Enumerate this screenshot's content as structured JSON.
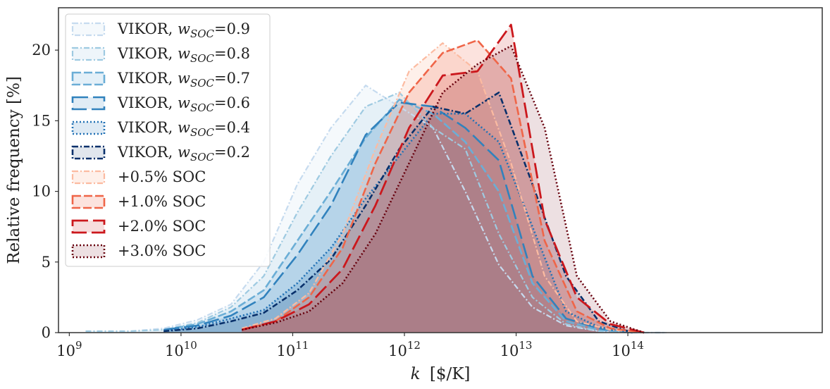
{
  "chart_data": {
    "type": "area",
    "xscale": "log",
    "xlabel_symbol": "k",
    "xlabel_unit": "[$/K]",
    "ylabel": "Relative frequency [%]",
    "xlim": [
      800000000,
      5500000000000000
    ],
    "ylim": [
      0,
      23
    ],
    "x_ticks": [
      {
        "base": "10",
        "exp": "9",
        "value": 1000000000
      },
      {
        "base": "10",
        "exp": "10",
        "value": 10000000000
      },
      {
        "base": "10",
        "exp": "11",
        "value": 100000000000
      },
      {
        "base": "10",
        "exp": "12",
        "value": 1000000000000
      },
      {
        "base": "10",
        "exp": "13",
        "value": 10000000000000
      },
      {
        "base": "10",
        "exp": "14",
        "value": 100000000000000
      }
    ],
    "y_ticks": [
      "0",
      "5",
      "10",
      "15",
      "20"
    ],
    "grid": false,
    "legend_position": "top-left",
    "series": [
      {
        "name": "VIKOR, w_SOC=0.9",
        "label_prefix": "VIKOR, ",
        "label_sym": "w",
        "label_sub": "SOC",
        "label_suffix": "=0.9",
        "color": "#c6dbef",
        "dash": "8 3 2 3",
        "width": 2.2,
        "fill_opacity": 0.18,
        "x": [
          1400000000.0,
          3500000000.0,
          7000000000.0,
          14000000000.0,
          28000000000.0,
          55000000000.0,
          110000000000.0,
          220000000000.0,
          450000000000.0,
          900000000000.0,
          1800000000000.0,
          3500000000000.0,
          7000000000000.0,
          14000000000000.0,
          28000000000000.0,
          55000000000000.0,
          110000000000000.0,
          220000000000000.0
        ],
        "values": [
          0.1,
          0.1,
          0.3,
          0.9,
          2.0,
          5.0,
          10.5,
          14.5,
          17.5,
          16.0,
          14.5,
          10.0,
          4.8,
          1.8,
          0.5,
          0.1,
          0.0,
          0.0
        ]
      },
      {
        "name": "VIKOR, w_SOC=0.8",
        "label_prefix": "VIKOR, ",
        "label_sym": "w",
        "label_sub": "SOC",
        "label_suffix": "=0.8",
        "color": "#9ecae1",
        "dash": "8 3 2 3",
        "width": 2.2,
        "fill_opacity": 0.18,
        "x": [
          1400000000.0,
          3500000000.0,
          7000000000.0,
          14000000000.0,
          28000000000.0,
          55000000000.0,
          110000000000.0,
          220000000000.0,
          450000000000.0,
          900000000000.0,
          1800000000000.0,
          3500000000000.0,
          7000000000000.0,
          14000000000000.0,
          28000000000000.0,
          55000000000000.0,
          110000000000000.0,
          220000000000000.0
        ],
        "values": [
          0.1,
          0.1,
          0.2,
          0.7,
          1.8,
          4.0,
          8.5,
          12.5,
          16.0,
          17.0,
          14.5,
          13.0,
          7.0,
          2.5,
          0.6,
          0.1,
          0.0,
          0.0
        ]
      },
      {
        "name": "VIKOR, w_SOC=0.7",
        "label_prefix": "VIKOR, ",
        "label_sym": "w",
        "label_sub": "SOC",
        "label_suffix": "=0.7",
        "color": "#6baed6",
        "dash": "12 4",
        "width": 2.6,
        "fill_opacity": 0.18,
        "x": [
          7000000000.0,
          14000000000.0,
          28000000000.0,
          55000000000.0,
          110000000000.0,
          220000000000.0,
          450000000000.0,
          900000000000.0,
          1800000000000.0,
          3500000000000.0,
          7000000000000.0,
          14000000000000.0,
          28000000000000.0,
          55000000000000.0,
          110000000000000.0
        ],
        "values": [
          0.2,
          0.6,
          1.5,
          3.0,
          6.5,
          10.0,
          13.8,
          16.5,
          15.5,
          13.5,
          10.0,
          3.5,
          0.8,
          0.2,
          0.0
        ]
      },
      {
        "name": "VIKOR, w_SOC=0.6",
        "label_prefix": "VIKOR, ",
        "label_sym": "w",
        "label_sub": "SOC",
        "label_suffix": "=0.6",
        "color": "#3182bd",
        "dash": "22 7",
        "width": 2.6,
        "fill_opacity": 0.15,
        "x": [
          7000000000.0,
          14000000000.0,
          28000000000.0,
          55000000000.0,
          110000000000.0,
          220000000000.0,
          450000000000.0,
          900000000000.0,
          1800000000000.0,
          3500000000000.0,
          7000000000000.0,
          14000000000000.0,
          28000000000000.0,
          55000000000000.0,
          110000000000000.0
        ],
        "values": [
          0.2,
          0.5,
          1.2,
          2.5,
          5.5,
          9.0,
          14.0,
          16.3,
          16.0,
          14.5,
          12.2,
          4.0,
          1.0,
          0.3,
          0.0
        ]
      },
      {
        "name": "VIKOR, w_SOC=0.4",
        "label_prefix": "VIKOR, ",
        "label_sym": "w",
        "label_sub": "SOC",
        "label_suffix": "=0.4",
        "color": "#2171b5",
        "dash": "2 3",
        "width": 2.6,
        "fill_opacity": 0.15,
        "x": [
          7000000000.0,
          14000000000.0,
          28000000000.0,
          55000000000.0,
          110000000000.0,
          220000000000.0,
          450000000000.0,
          900000000000.0,
          1800000000000.0,
          3500000000000.0,
          7000000000000.0,
          14000000000000.0,
          28000000000000.0,
          55000000000000.0,
          110000000000000.0
        ],
        "values": [
          0.1,
          0.4,
          1.0,
          1.6,
          3.5,
          6.0,
          9.5,
          12.5,
          15.5,
          15.5,
          13.5,
          7.5,
          1.5,
          0.4,
          0.0
        ]
      },
      {
        "name": "VIKOR, w_SOC=0.2",
        "label_prefix": "VIKOR, ",
        "label_sym": "w",
        "label_sub": "SOC",
        "label_suffix": "=0.2",
        "color": "#08306b",
        "dash": "8 3 2 3",
        "width": 2.6,
        "fill_opacity": 0.12,
        "x": [
          7000000000.0,
          14000000000.0,
          28000000000.0,
          55000000000.0,
          110000000000.0,
          220000000000.0,
          450000000000.0,
          900000000000.0,
          1800000000000.0,
          3500000000000.0,
          7000000000000.0,
          14000000000000.0,
          28000000000000.0,
          55000000000000.0,
          110000000000000.0
        ],
        "values": [
          0.1,
          0.3,
          0.8,
          1.4,
          3.0,
          5.2,
          9.0,
          13.0,
          16.0,
          15.5,
          17.0,
          10.5,
          4.0,
          0.8,
          0.0
        ]
      },
      {
        "name": "+0.5% SOC",
        "color": "#fcbba1",
        "dash": "8 3 2 3",
        "width": 2.2,
        "fill_opacity": 0.22,
        "x": [
          35000000000.0,
          70000000000.0,
          140000000000.0,
          280000000000.0,
          550000000000.0,
          1100000000000.0,
          2200000000000.0,
          4500000000000.0,
          9000000000000.0,
          18000000000000.0,
          35000000000000.0,
          70000000000000.0,
          140000000000000.0
        ],
        "values": [
          0.3,
          1.0,
          2.8,
          7.0,
          13.0,
          18.5,
          20.5,
          18.5,
          12.0,
          4.0,
          0.8,
          0.2,
          0.0
        ]
      },
      {
        "name": "+1.0% SOC",
        "color": "#ef6548",
        "dash": "12 4",
        "width": 2.6,
        "fill_opacity": 0.18,
        "x": [
          35000000000.0,
          70000000000.0,
          140000000000.0,
          280000000000.0,
          550000000000.0,
          1100000000000.0,
          2200000000000.0,
          4500000000000.0,
          9000000000000.0,
          18000000000000.0,
          35000000000000.0,
          70000000000000.0,
          140000000000000.0
        ],
        "values": [
          0.2,
          0.8,
          2.5,
          6.0,
          12.0,
          17.0,
          19.8,
          20.7,
          18.0,
          6.5,
          1.5,
          0.3,
          0.0
        ]
      },
      {
        "name": "+2.0% SOC",
        "color": "#cb181d",
        "dash": "22 7",
        "width": 2.8,
        "fill_opacity": 0.15,
        "x": [
          35000000000.0,
          70000000000.0,
          140000000000.0,
          280000000000.0,
          550000000000.0,
          1100000000000.0,
          2200000000000.0,
          4500000000000.0,
          9000000000000.0,
          18000000000000.0,
          35000000000000.0,
          70000000000000.0,
          140000000000000.0
        ],
        "values": [
          0.2,
          0.8,
          2.0,
          4.5,
          9.0,
          14.5,
          18.2,
          18.5,
          21.8,
          8.0,
          2.5,
          0.6,
          0.0
        ]
      },
      {
        "name": "+3.0% SOC",
        "color": "#67000d",
        "dash": "2 3",
        "width": 2.6,
        "fill_opacity": 0.12,
        "x": [
          35000000000.0,
          70000000000.0,
          140000000000.0,
          280000000000.0,
          550000000000.0,
          1100000000000.0,
          2200000000000.0,
          4500000000000.0,
          9000000000000.0,
          18000000000000.0,
          35000000000000.0,
          70000000000000.0,
          140000000000000.0
        ],
        "values": [
          0.2,
          0.7,
          1.5,
          3.5,
          7.0,
          12.0,
          17.0,
          19.0,
          20.3,
          14.5,
          4.0,
          0.8,
          0.0
        ]
      }
    ]
  }
}
